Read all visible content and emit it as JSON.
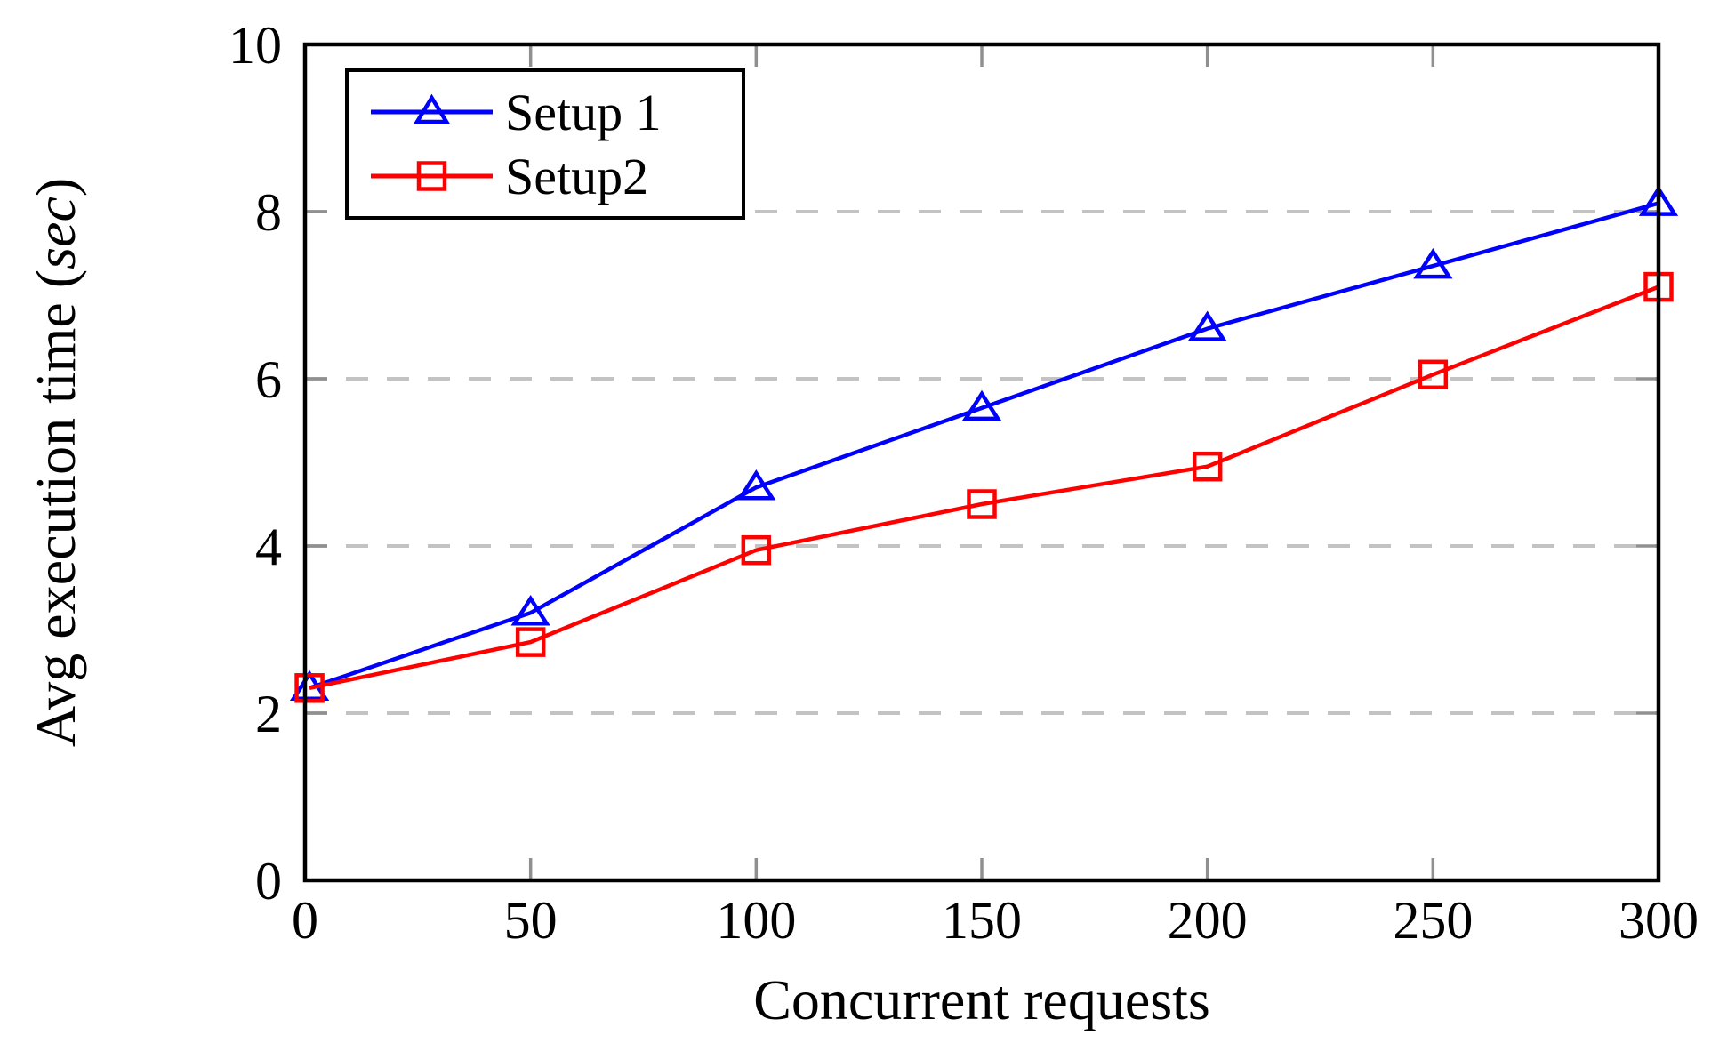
{
  "chart_data": {
    "type": "line",
    "title": "",
    "xlabel": "Concurrent requests",
    "ylabel": "Avg execution time (sec)",
    "ylabel_parts": {
      "prefix": "Avg execution time (",
      "italic": "sec",
      "suffix": ")"
    },
    "x": [
      1,
      50,
      100,
      150,
      200,
      250,
      300
    ],
    "series": [
      {
        "name": "Setup 1",
        "color": "#0000ff",
        "marker": "triangle",
        "values": [
          2.3,
          3.2,
          4.7,
          5.65,
          6.6,
          7.35,
          8.1
        ]
      },
      {
        "name": "Setup2",
        "color": "#ff0000",
        "marker": "square",
        "values": [
          2.3,
          2.85,
          3.95,
          4.5,
          4.95,
          6.05,
          7.1
        ]
      }
    ],
    "xlim": [
      0,
      300
    ],
    "ylim": [
      0,
      10
    ],
    "x_ticks": [
      0,
      50,
      100,
      150,
      200,
      250,
      300
    ],
    "y_ticks": [
      0,
      2,
      4,
      6,
      8,
      10
    ],
    "grid_y": [
      2,
      4,
      6,
      8
    ],
    "grid_style": "dashed",
    "legend_position": "top-left",
    "colors": {
      "frame": "#000000",
      "grid": "#c3c3c3",
      "tick": "#909090",
      "background": "#ffffff"
    }
  }
}
